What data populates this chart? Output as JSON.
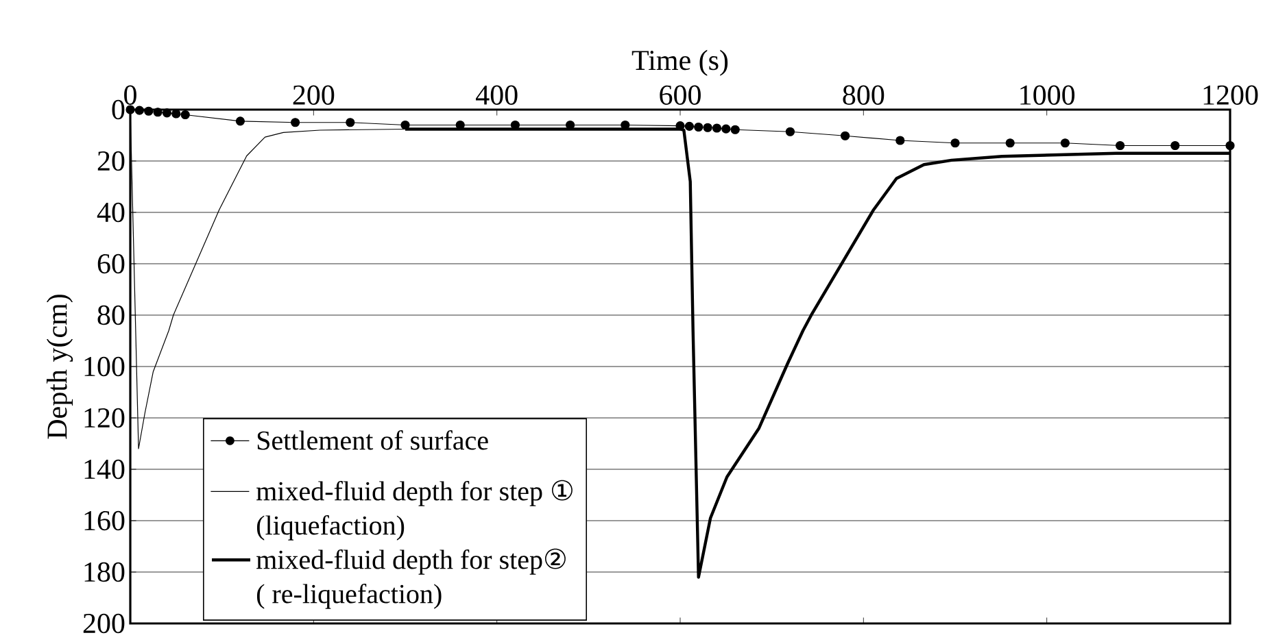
{
  "chart_data": {
    "type": "line",
    "xlabel": "Time (s)",
    "ylabel": "Depth y(cm)",
    "xlim": [
      0,
      1200
    ],
    "xticks": [
      0,
      200,
      400,
      600,
      800,
      1000,
      1200
    ],
    "ylim": [
      200,
      0
    ],
    "yticks": [
      0,
      20,
      40,
      60,
      80,
      100,
      120,
      140,
      160,
      180,
      200
    ],
    "grid": "y",
    "legend": "bottom left",
    "series": [
      {
        "name": "Settlement of surface",
        "color": "#000000",
        "marker": "circle",
        "x": [
          0,
          10,
          20,
          30,
          40,
          50,
          60,
          120,
          180,
          240,
          300,
          360,
          420,
          480,
          540,
          600,
          610,
          620,
          630,
          640,
          650,
          660,
          720,
          780,
          840,
          900,
          960,
          1020,
          1080,
          1140,
          1200
        ],
        "values": [
          0,
          0.3,
          0.6,
          1,
          1.3,
          1.6,
          2,
          4.5,
          5,
          5,
          6,
          6,
          6,
          6,
          6,
          6.3,
          6.5,
          6.8,
          7,
          7.2,
          7.5,
          7.8,
          8.6,
          10.2,
          12,
          13,
          13,
          13,
          14,
          14,
          14
        ]
      },
      {
        "name": "mixed-fluid depth for step ① (liquefaction)",
        "color": "#000000",
        "marker": "none",
        "x": [
          0,
          9,
          16,
          25,
          42,
          47,
          97,
          127,
          147,
          167,
          207,
          300,
          600
        ],
        "values": [
          0,
          132,
          118,
          102,
          86,
          80,
          39,
          18,
          10.7,
          8.9,
          8,
          7.6,
          7.6
        ]
      },
      {
        "name": "mixed-fluid depth for step② ( re-liquefaction)",
        "color": "#000000",
        "marker": "none",
        "x": [
          300,
          600,
          604,
          611,
          614,
          620,
          633,
          651,
          686,
          717,
          734,
          743,
          772,
          811,
          836,
          866,
          896,
          951,
          1076,
          1200
        ],
        "values": [
          7.6,
          7.6,
          8,
          28,
          86,
          182,
          159,
          143,
          124,
          99,
          86,
          80,
          62.5,
          39,
          26.8,
          21.4,
          19.7,
          18.2,
          17,
          17
        ]
      }
    ]
  }
}
